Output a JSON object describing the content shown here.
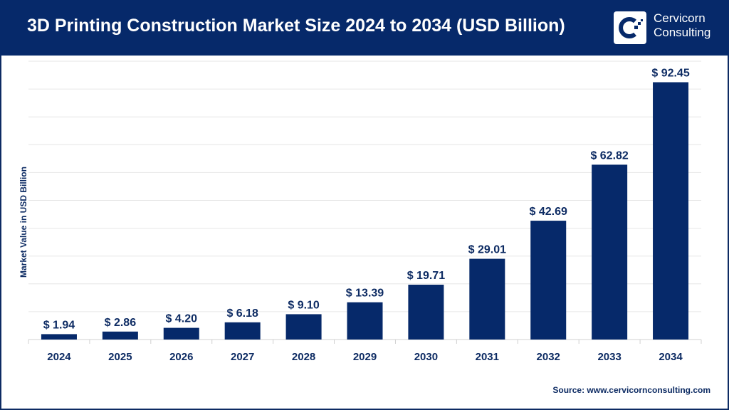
{
  "header": {
    "title": "3D Printing Construction Market Size 2024 to 2034 (USD Billion)",
    "logo_text": [
      "Cervicorn",
      "Consulting"
    ],
    "color": "#06296a"
  },
  "source": "Source: www.cervicornconsulting.com",
  "chart_data": {
    "type": "bar",
    "title": "3D Printing Construction Market Size 2024 to 2034 (USD Billion)",
    "ylabel": "Market Value in USD Billion",
    "xlabel": "",
    "categories": [
      "2024",
      "2025",
      "2026",
      "2027",
      "2028",
      "2029",
      "2030",
      "2031",
      "2032",
      "2033",
      "2034"
    ],
    "values": [
      1.94,
      2.86,
      4.2,
      6.18,
      9.1,
      13.39,
      19.71,
      29.01,
      42.69,
      62.82,
      92.45
    ],
    "data_labels": [
      "$ 1.94",
      "$ 2.86",
      "$ 4.20",
      "$ 6.18",
      "$ 9.10",
      "$ 13.39",
      "$ 19.71",
      "$ 29.01",
      "$ 42.69",
      "$ 62.82",
      "$ 92.45"
    ],
    "ylim": [
      0,
      100
    ],
    "grid_step": 10,
    "grid": true,
    "bar_color": "#06296a"
  }
}
